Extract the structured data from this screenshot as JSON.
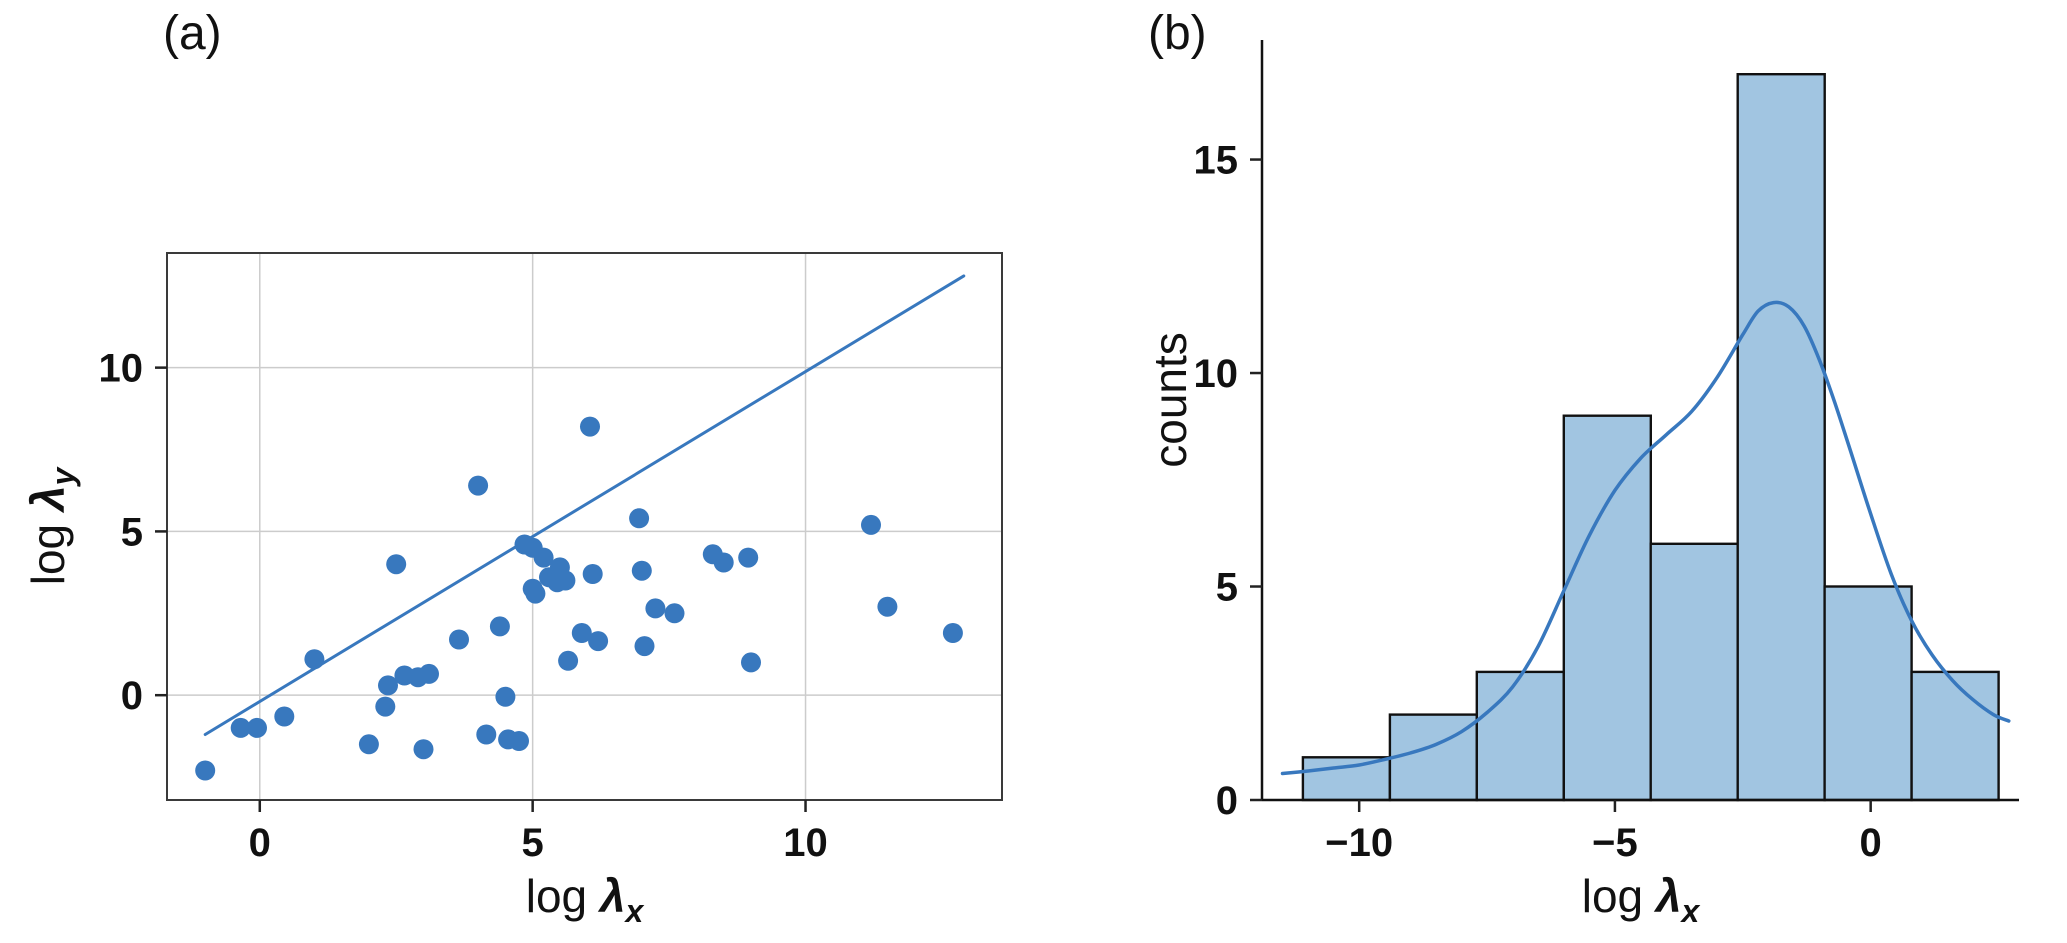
{
  "figure": {
    "background": "#ffffff",
    "grid_color": "#cccccc",
    "spine_color_a": "#3a3a3a",
    "spine_color_b": "#111111",
    "text_color": "#111111",
    "accent_blue": "#3878be"
  },
  "panels": {
    "a": {
      "tag": "(a)"
    },
    "b": {
      "tag": "(b)"
    }
  },
  "chart_data": [
    {
      "type": "scatter",
      "panel": "a",
      "title": "",
      "xlabel": {
        "prefix": "log ",
        "symbol": "λ",
        "subscript": "x"
      },
      "ylabel": {
        "prefix": "log ",
        "symbol": "λ",
        "subscript": "y"
      },
      "xlim": [
        -1.7,
        13.6
      ],
      "ylim": [
        -3.2,
        13.5
      ],
      "xticks": [
        0,
        5,
        10
      ],
      "yticks": [
        0,
        5,
        10
      ],
      "grid": true,
      "marker_color": "#3878be",
      "line_color": "#3878be",
      "identity_line": [
        [
          -1.0,
          -1.2
        ],
        [
          12.9,
          12.8
        ]
      ],
      "points": [
        [
          -1.0,
          -2.3
        ],
        [
          -0.35,
          -1.0
        ],
        [
          -0.05,
          -1.0
        ],
        [
          0.45,
          -0.65
        ],
        [
          1.0,
          1.1
        ],
        [
          2.0,
          -1.5
        ],
        [
          2.3,
          -0.35
        ],
        [
          2.35,
          0.3
        ],
        [
          2.5,
          4.0
        ],
        [
          2.65,
          0.6
        ],
        [
          2.9,
          0.55
        ],
        [
          3.0,
          -1.65
        ],
        [
          3.1,
          0.65
        ],
        [
          3.65,
          1.7
        ],
        [
          4.0,
          6.4
        ],
        [
          4.15,
          -1.2
        ],
        [
          4.4,
          2.1
        ],
        [
          4.5,
          -0.05
        ],
        [
          4.55,
          -1.35
        ],
        [
          4.75,
          -1.4
        ],
        [
          4.85,
          4.6
        ],
        [
          5.0,
          4.5
        ],
        [
          5.0,
          3.25
        ],
        [
          5.05,
          3.1
        ],
        [
          5.2,
          4.2
        ],
        [
          5.3,
          3.6
        ],
        [
          5.45,
          3.45
        ],
        [
          5.5,
          3.9
        ],
        [
          5.6,
          3.5
        ],
        [
          5.65,
          1.05
        ],
        [
          5.9,
          1.9
        ],
        [
          6.05,
          8.2
        ],
        [
          6.1,
          3.7
        ],
        [
          6.2,
          1.65
        ],
        [
          6.95,
          5.4
        ],
        [
          7.0,
          3.8
        ],
        [
          7.05,
          1.5
        ],
        [
          7.25,
          2.65
        ],
        [
          7.6,
          2.5
        ],
        [
          8.3,
          4.3
        ],
        [
          8.5,
          4.05
        ],
        [
          8.95,
          4.2
        ],
        [
          9.0,
          1.0
        ],
        [
          11.2,
          5.2
        ],
        [
          11.5,
          2.7
        ],
        [
          12.7,
          1.9
        ]
      ]
    },
    {
      "type": "histogram",
      "panel": "b",
      "title": "",
      "xlabel": {
        "prefix": "log ",
        "symbol": "λ",
        "subscript": "x"
      },
      "ylabel": "counts",
      "xlim": [
        -11.9,
        2.9
      ],
      "ylim": [
        0,
        17.8
      ],
      "xticks": [
        -10,
        -5,
        0
      ],
      "yticks": [
        0,
        5,
        10,
        15
      ],
      "grid": false,
      "bar_fill": "#a1c5e1",
      "bar_edge": "#111111",
      "kde_color": "#3878be",
      "bin_edges": [
        -11.1,
        -9.4,
        -7.7,
        -6.0,
        -4.3,
        -2.6,
        -0.9,
        0.8,
        2.5
      ],
      "counts": [
        1,
        2,
        3,
        9,
        6,
        17,
        5,
        3
      ],
      "kde_curve": [
        [
          -11.5,
          0.62
        ],
        [
          -11.0,
          0.68
        ],
        [
          -10.5,
          0.75
        ],
        [
          -10.0,
          0.82
        ],
        [
          -9.5,
          0.95
        ],
        [
          -9.0,
          1.1
        ],
        [
          -8.5,
          1.3
        ],
        [
          -8.0,
          1.6
        ],
        [
          -7.5,
          2.05
        ],
        [
          -7.0,
          2.65
        ],
        [
          -6.5,
          3.6
        ],
        [
          -6.0,
          4.9
        ],
        [
          -5.5,
          6.2
        ],
        [
          -5.0,
          7.25
        ],
        [
          -4.5,
          8.0
        ],
        [
          -4.0,
          8.55
        ],
        [
          -3.5,
          9.1
        ],
        [
          -3.0,
          9.9
        ],
        [
          -2.5,
          10.9
        ],
        [
          -2.2,
          11.45
        ],
        [
          -1.9,
          11.65
        ],
        [
          -1.6,
          11.55
        ],
        [
          -1.3,
          11.1
        ],
        [
          -1.0,
          10.3
        ],
        [
          -0.7,
          9.3
        ],
        [
          -0.4,
          8.2
        ],
        [
          0.0,
          6.7
        ],
        [
          0.4,
          5.3
        ],
        [
          0.8,
          4.2
        ],
        [
          1.2,
          3.4
        ],
        [
          1.6,
          2.8
        ],
        [
          2.0,
          2.35
        ],
        [
          2.4,
          2.0
        ],
        [
          2.7,
          1.85
        ]
      ]
    }
  ]
}
